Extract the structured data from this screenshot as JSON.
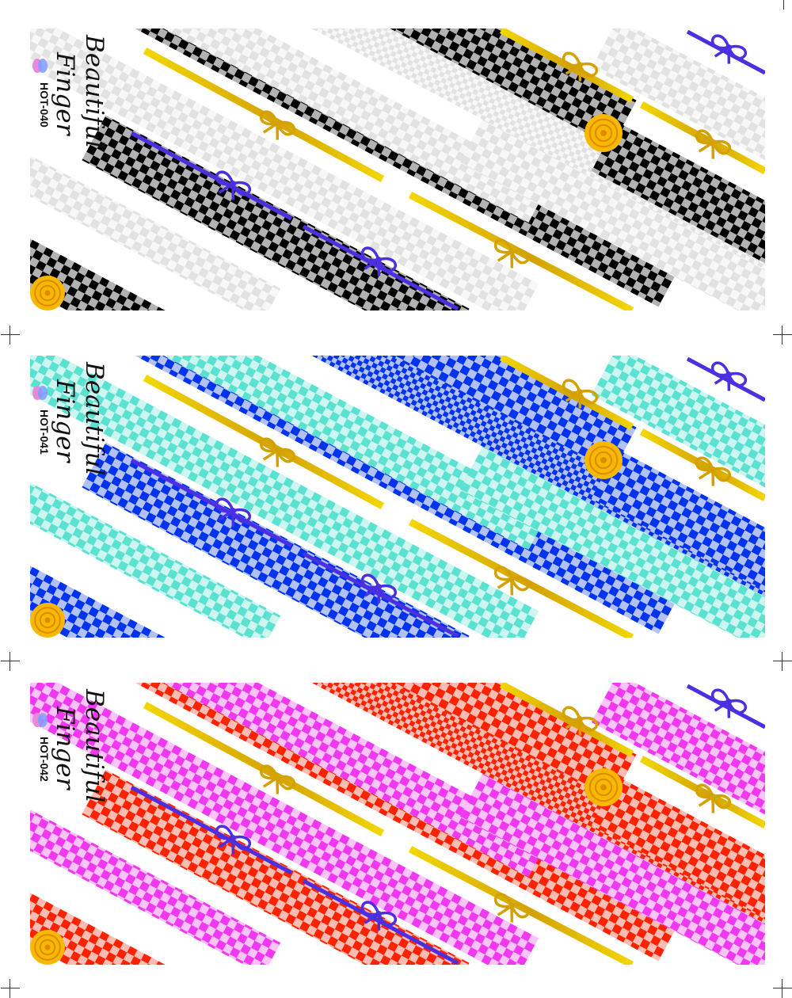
{
  "sheets": [
    {
      "code": "HOT-040",
      "brand_line1": "Beautiful",
      "brand_line2": "Finger",
      "checks": [
        {
          "role": "dark-check",
          "color": "#000000",
          "opacity": 1.0
        },
        {
          "role": "light-check",
          "color": "#d8d8d8",
          "opacity": 0.75
        }
      ]
    },
    {
      "code": "HOT-041",
      "brand_line1": "Beautiful",
      "brand_line2": "Finger",
      "checks": [
        {
          "role": "dark-check",
          "color": "#0033ee",
          "opacity": 1.0
        },
        {
          "role": "light-check",
          "color": "#3ddcc8",
          "opacity": 0.85
        }
      ]
    },
    {
      "code": "HOT-042",
      "brand_line1": "Beautiful",
      "brand_line2": "Finger",
      "checks": [
        {
          "role": "dark-check",
          "color": "#ff2200",
          "opacity": 1.0
        },
        {
          "role": "light-check",
          "color": "#ee22ee",
          "opacity": 0.9
        }
      ]
    }
  ],
  "colors": {
    "gold_ribbon": "#f2d600",
    "gold_ribbon_dark": "#d4a200",
    "purple_ribbon": "#4b2fe0",
    "rose": "#f6b800",
    "rose_dark": "#e08a00",
    "petal_pink": "#e889d9",
    "petal_blue": "#7f9cff"
  },
  "icons": [
    "rose-icon",
    "gold-bow-icon",
    "purple-bow-icon",
    "petal-logo-icon"
  ]
}
